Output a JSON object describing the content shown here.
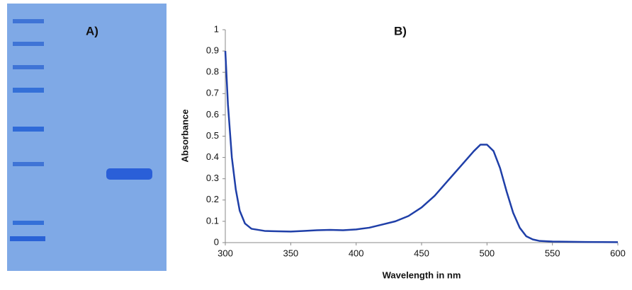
{
  "panel_a": {
    "label": "A)"
  },
  "chart_data": {
    "type": "line",
    "title": "B)",
    "x_label": "Wavelength in nm",
    "y_label": "Absorbance",
    "x": [
      300,
      302,
      305,
      308,
      311,
      315,
      320,
      330,
      340,
      350,
      360,
      370,
      380,
      390,
      400,
      410,
      420,
      430,
      440,
      450,
      460,
      470,
      480,
      490,
      495,
      500,
      505,
      510,
      515,
      520,
      525,
      530,
      535,
      540,
      550,
      575,
      600
    ],
    "series": [
      {
        "name": "Absorbance",
        "color": "#1f3fa8",
        "values": [
          0.9,
          0.65,
          0.4,
          0.25,
          0.15,
          0.09,
          0.065,
          0.055,
          0.053,
          0.052,
          0.055,
          0.058,
          0.06,
          0.058,
          0.062,
          0.07,
          0.085,
          0.1,
          0.125,
          0.165,
          0.22,
          0.29,
          0.36,
          0.43,
          0.46,
          0.46,
          0.43,
          0.35,
          0.24,
          0.14,
          0.07,
          0.03,
          0.015,
          0.008,
          0.005,
          0.003,
          0.002
        ]
      }
    ],
    "xlim": [
      300,
      600
    ],
    "xticks": [
      300,
      350,
      400,
      450,
      500,
      550,
      600
    ],
    "ylim": [
      0,
      1
    ],
    "yticks": [
      0,
      0.1,
      0.2,
      0.3,
      0.4,
      0.5,
      0.6,
      0.7,
      0.8,
      0.9,
      1
    ],
    "grid": false
  }
}
